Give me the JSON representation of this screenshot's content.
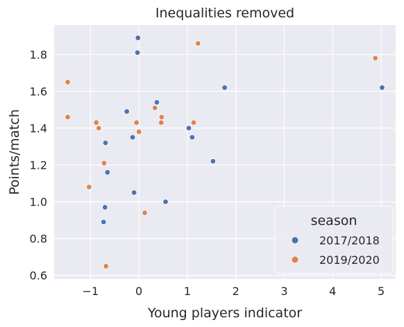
{
  "chart_data": {
    "type": "scatter",
    "title": "Inequalities removed",
    "xlabel": "Young players indicator",
    "ylabel": "Points/match",
    "xlim": [
      -1.75,
      5.3
    ],
    "ylim": [
      0.58,
      1.96
    ],
    "xticks": [
      -1,
      0,
      1,
      2,
      3,
      4,
      5
    ],
    "xtick_labels": [
      "−1",
      "0",
      "1",
      "2",
      "3",
      "4",
      "5"
    ],
    "yticks": [
      0.6,
      0.8,
      1.0,
      1.2,
      1.4,
      1.6,
      1.8
    ],
    "ytick_labels": [
      "0.6",
      "0.8",
      "1.0",
      "1.2",
      "1.4",
      "1.6",
      "1.8"
    ],
    "grid": true,
    "background": "#eaeaf2",
    "legend": {
      "title": "season",
      "position": "lower-right"
    },
    "series": [
      {
        "name": "2017/2018",
        "color": "#4c72b0",
        "points": [
          {
            "x": -0.02,
            "y": 1.89
          },
          {
            "x": -0.03,
            "y": 1.81
          },
          {
            "x": 1.77,
            "y": 1.62
          },
          {
            "x": 5.02,
            "y": 1.62
          },
          {
            "x": 0.37,
            "y": 1.54
          },
          {
            "x": -0.25,
            "y": 1.49
          },
          {
            "x": 1.03,
            "y": 1.4
          },
          {
            "x": -0.13,
            "y": 1.35
          },
          {
            "x": 1.1,
            "y": 1.35
          },
          {
            "x": -0.69,
            "y": 1.32
          },
          {
            "x": 1.53,
            "y": 1.22
          },
          {
            "x": -0.65,
            "y": 1.16
          },
          {
            "x": -0.1,
            "y": 1.05
          },
          {
            "x": 0.55,
            "y": 1.0
          },
          {
            "x": -0.7,
            "y": 0.97
          },
          {
            "x": -0.73,
            "y": 0.89
          }
        ]
      },
      {
        "name": "2019/2020",
        "color": "#dd8452",
        "points": [
          {
            "x": 1.22,
            "y": 1.86
          },
          {
            "x": 4.88,
            "y": 1.78
          },
          {
            "x": -1.47,
            "y": 1.65
          },
          {
            "x": 0.33,
            "y": 1.51
          },
          {
            "x": -1.47,
            "y": 1.46
          },
          {
            "x": 0.47,
            "y": 1.46
          },
          {
            "x": -0.88,
            "y": 1.43
          },
          {
            "x": -0.05,
            "y": 1.43
          },
          {
            "x": 0.46,
            "y": 1.43
          },
          {
            "x": 1.13,
            "y": 1.43
          },
          {
            "x": -0.83,
            "y": 1.4
          },
          {
            "x": 0.0,
            "y": 1.38
          },
          {
            "x": -0.72,
            "y": 1.21
          },
          {
            "x": -1.03,
            "y": 1.08
          },
          {
            "x": 0.12,
            "y": 0.94
          },
          {
            "x": -0.68,
            "y": 0.65
          }
        ]
      }
    ]
  }
}
